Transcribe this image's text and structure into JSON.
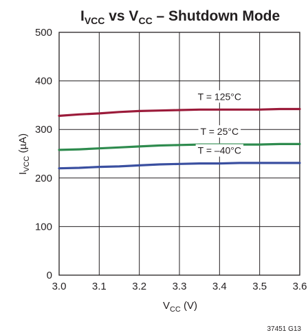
{
  "chart_data": {
    "type": "line",
    "title": {
      "main": "I",
      "main_sub": "VCC",
      "mid": " vs V",
      "mid_sub": "CC",
      "tail": " – Shutdown Mode"
    },
    "xlabel": {
      "main": "V",
      "sub": "CC",
      "tail": " (V)"
    },
    "ylabel": {
      "main": "I",
      "sub": "VCC",
      "tail": " (µA)"
    },
    "xlim": [
      3.0,
      3.6
    ],
    "ylim": [
      0,
      500
    ],
    "x_ticks": [
      "3.0",
      "3.1",
      "3.2",
      "3.3",
      "3.4",
      "3.5",
      "3.6"
    ],
    "y_ticks": [
      "0",
      "100",
      "200",
      "300",
      "400",
      "500"
    ],
    "grid": true,
    "series": [
      {
        "name": "T = 125°C",
        "color": "#9b1b3a",
        "x": [
          3.0,
          3.05,
          3.1,
          3.15,
          3.2,
          3.25,
          3.3,
          3.35,
          3.4,
          3.45,
          3.5,
          3.55,
          3.6
        ],
        "y": [
          328,
          331,
          333,
          336,
          338,
          339,
          340,
          341,
          341,
          341,
          341,
          342,
          342
        ]
      },
      {
        "name": "T = 25°C",
        "color": "#2e8b4e",
        "x": [
          3.0,
          3.05,
          3.1,
          3.15,
          3.2,
          3.25,
          3.3,
          3.35,
          3.4,
          3.45,
          3.5,
          3.55,
          3.6
        ],
        "y": [
          258,
          259,
          261,
          263,
          265,
          267,
          268,
          269,
          269,
          269,
          269,
          270,
          270
        ]
      },
      {
        "name": "T = –40°C",
        "color": "#3a4fa0",
        "x": [
          3.0,
          3.05,
          3.1,
          3.15,
          3.2,
          3.25,
          3.3,
          3.35,
          3.4,
          3.45,
          3.5,
          3.55,
          3.6
        ],
        "y": [
          220,
          221,
          223,
          224,
          226,
          228,
          229,
          230,
          230,
          231,
          231,
          231,
          231
        ]
      }
    ],
    "figure_code": "37451 G13"
  }
}
